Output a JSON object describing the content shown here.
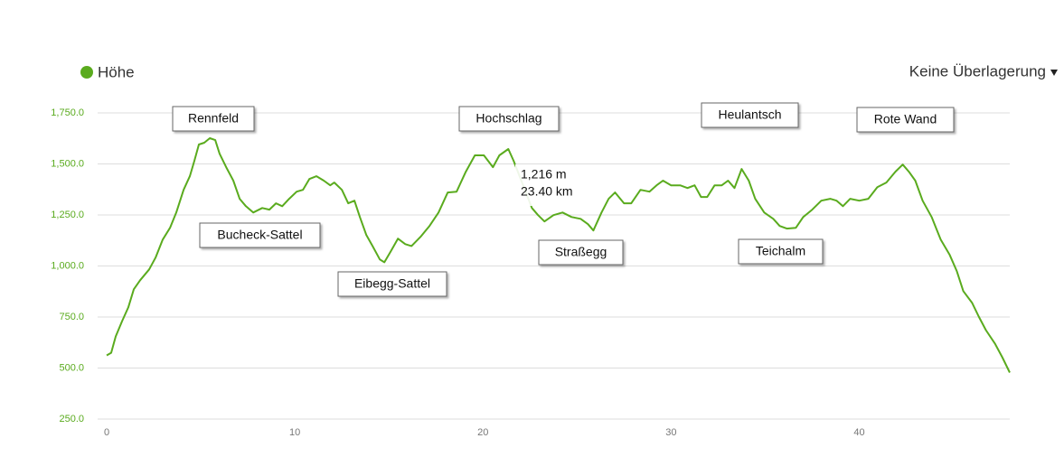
{
  "chart_data": {
    "type": "line",
    "series": [
      {
        "name": "Höhe",
        "color": "#5aab1e",
        "x": [
          0,
          0.24,
          0.48,
          0.82,
          1.15,
          1.44,
          1.78,
          2.26,
          2.6,
          2.98,
          3.37,
          3.7,
          4.09,
          4.42,
          4.66,
          4.9,
          5.19,
          5.48,
          5.77,
          6.0,
          6.35,
          6.73,
          7.07,
          7.4,
          7.79,
          8.27,
          8.65,
          9.0,
          9.33,
          9.7,
          10.1,
          10.43,
          10.77,
          11.15,
          11.54,
          11.88,
          12.1,
          12.5,
          12.84,
          13.17,
          13.46,
          13.8,
          14.13,
          14.52,
          14.76,
          15.1,
          15.48,
          15.87,
          16.2,
          16.68,
          17.16,
          17.64,
          18.13,
          18.6,
          19.09,
          19.57,
          20.05,
          20.53,
          20.87,
          21.35,
          21.63,
          22.6,
          22.93,
          23.27,
          23.75,
          24.23,
          24.71,
          25.19,
          25.58,
          25.87,
          26.3,
          26.68,
          27.02,
          27.5,
          27.88,
          28.37,
          28.85,
          29.23,
          29.57,
          30.0,
          30.48,
          30.87,
          31.25,
          31.59,
          31.92,
          32.31,
          32.69,
          33.03,
          33.37,
          33.75,
          34.13,
          34.47,
          34.95,
          35.43,
          35.77,
          36.15,
          36.63,
          37.02,
          37.5,
          37.98,
          38.46,
          38.8,
          39.13,
          39.52,
          40.0,
          40.48,
          40.96,
          41.44,
          41.92,
          42.31,
          42.64,
          42.98,
          43.37,
          43.85,
          44.33,
          44.81,
          45.19,
          45.53,
          46.0,
          46.35,
          46.73,
          47.21,
          47.6,
          48.0
        ],
        "values": [
          562,
          575,
          655,
          730,
          797,
          886,
          930,
          983,
          1041,
          1129,
          1187,
          1262,
          1373,
          1440,
          1515,
          1595,
          1604,
          1626,
          1617,
          1550,
          1484,
          1418,
          1329,
          1293,
          1262,
          1284,
          1276,
          1307,
          1293,
          1329,
          1364,
          1373,
          1426,
          1440,
          1418,
          1395,
          1409,
          1373,
          1307,
          1320,
          1240,
          1152,
          1098,
          1032,
          1018,
          1072,
          1134,
          1107,
          1098,
          1143,
          1196,
          1262,
          1360,
          1364,
          1462,
          1542,
          1542,
          1484,
          1542,
          1573,
          1515,
          1284,
          1249,
          1218,
          1249,
          1262,
          1240,
          1231,
          1205,
          1174,
          1262,
          1329,
          1360,
          1307,
          1307,
          1373,
          1364,
          1395,
          1418,
          1395,
          1395,
          1382,
          1395,
          1338,
          1338,
          1395,
          1395,
          1418,
          1382,
          1475,
          1418,
          1329,
          1262,
          1231,
          1196,
          1183,
          1187,
          1240,
          1276,
          1320,
          1329,
          1320,
          1293,
          1329,
          1320,
          1329,
          1386,
          1409,
          1462,
          1497,
          1462,
          1418,
          1320,
          1240,
          1129,
          1054,
          974,
          877,
          819,
          752,
          686,
          620,
          553,
          478
        ]
      }
    ],
    "xlim": [
      0,
      48
    ],
    "xticks": [
      0,
      10,
      20,
      30,
      40
    ],
    "ylim": [
      250,
      1750
    ],
    "yticks": [
      {
        "value": 250,
        "label": "250.0"
      },
      {
        "value": 500,
        "label": "500.0"
      },
      {
        "value": 750,
        "label": "750.0"
      },
      {
        "value": 1000,
        "label": "1,000.0"
      },
      {
        "value": 1250,
        "label": "1,250.0"
      },
      {
        "value": 1500,
        "label": "1,500.0"
      },
      {
        "value": 1750,
        "label": "1,750.0"
      }
    ],
    "grid": true,
    "overlay": "Keine Überlagerung",
    "annotations": [
      "Rennfeld",
      "Bucheck-Sattel",
      "Eibegg-Sattel",
      "Hochschlag",
      "Straßegg",
      "Heulantsch",
      "Teichalm",
      "Rote Wand"
    ],
    "tooltip": {
      "elevation": "1,216 m",
      "distance": "23.40 km"
    }
  }
}
